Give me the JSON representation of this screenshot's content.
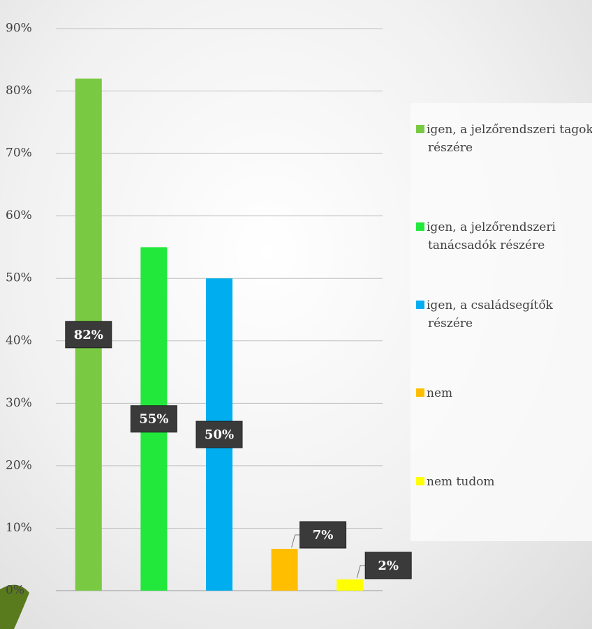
{
  "chart_data": {
    "type": "bar",
    "categories": [
      null
    ],
    "series": [
      {
        "name": "igen, a jelzőrendszeri tagok részére",
        "color": "#7ac943",
        "values": [
          82
        ],
        "value_labels": [
          "82%"
        ]
      },
      {
        "name": "igen, a jelzőrendszeri tanácsadók részére",
        "color": "#22e83c",
        "values": [
          55
        ],
        "value_labels": [
          "55%"
        ]
      },
      {
        "name": "igen, a családsegítők részére",
        "color": "#00aeef",
        "values": [
          50
        ],
        "value_labels": [
          "50%"
        ]
      },
      {
        "name": "nem",
        "color": "#ffbf00",
        "values": [
          6.7
        ],
        "value_labels": [
          "7%"
        ]
      },
      {
        "name": "nem tudom",
        "color": "#ffff00",
        "values": [
          1.8
        ],
        "value_labels": [
          "2%"
        ]
      }
    ],
    "ylim": [
      0,
      90
    ],
    "yticks": [
      {
        "value": 0,
        "label": "0%"
      },
      {
        "value": 10,
        "label": "10%"
      },
      {
        "value": 20,
        "label": "20%"
      },
      {
        "value": 30,
        "label": "30%"
      },
      {
        "value": 40,
        "label": "40%"
      },
      {
        "value": 50,
        "label": "50%"
      },
      {
        "value": 60,
        "label": "60%"
      },
      {
        "value": 70,
        "label": "70%"
      },
      {
        "value": 80,
        "label": "80%"
      },
      {
        "value": 90,
        "label": "90%"
      }
    ],
    "grid": true,
    "legend": "right"
  }
}
